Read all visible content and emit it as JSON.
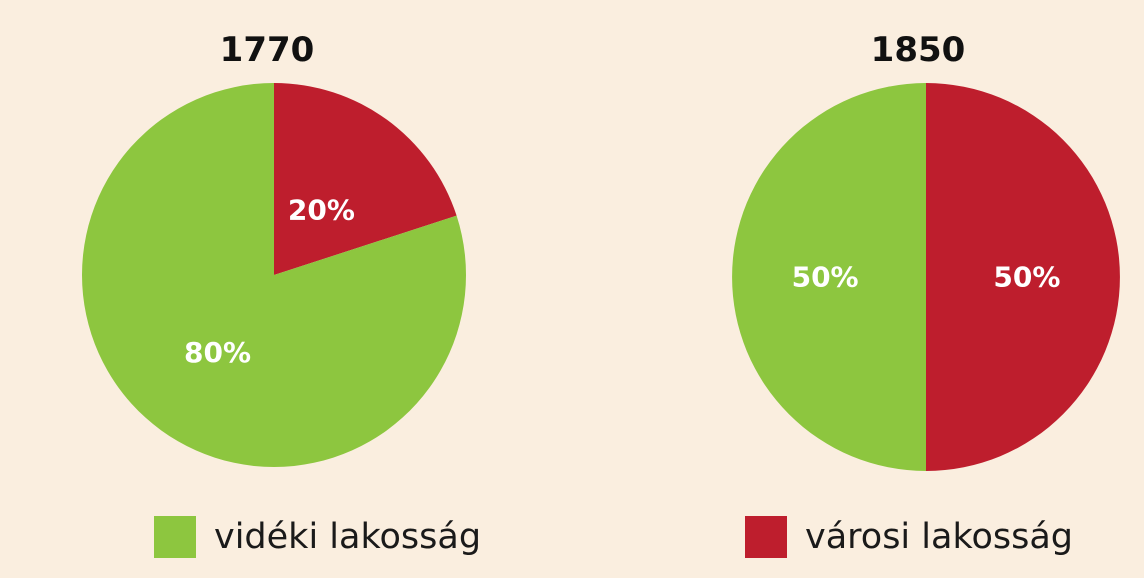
{
  "chart_data": [
    {
      "type": "pie",
      "title": "1770",
      "slices": [
        {
          "label": "vidéki lakosság",
          "value": 80,
          "display": "80%",
          "color": "#8DC63F"
        },
        {
          "label": "városi lakosság",
          "value": 20,
          "display": "20%",
          "color": "#BE1E2D"
        }
      ]
    },
    {
      "type": "pie",
      "title": "1850",
      "slices": [
        {
          "label": "vidéki lakosság",
          "value": 50,
          "display": "50%",
          "color": "#8DC63F"
        },
        {
          "label": "városi lakosság",
          "value": 50,
          "display": "50%",
          "color": "#BE1E2D"
        }
      ]
    }
  ],
  "legend": {
    "rural": {
      "label": "vidéki lakosság",
      "color": "#8DC63F"
    },
    "urban": {
      "label": "városi lakosság",
      "color": "#BE1E2D"
    }
  }
}
